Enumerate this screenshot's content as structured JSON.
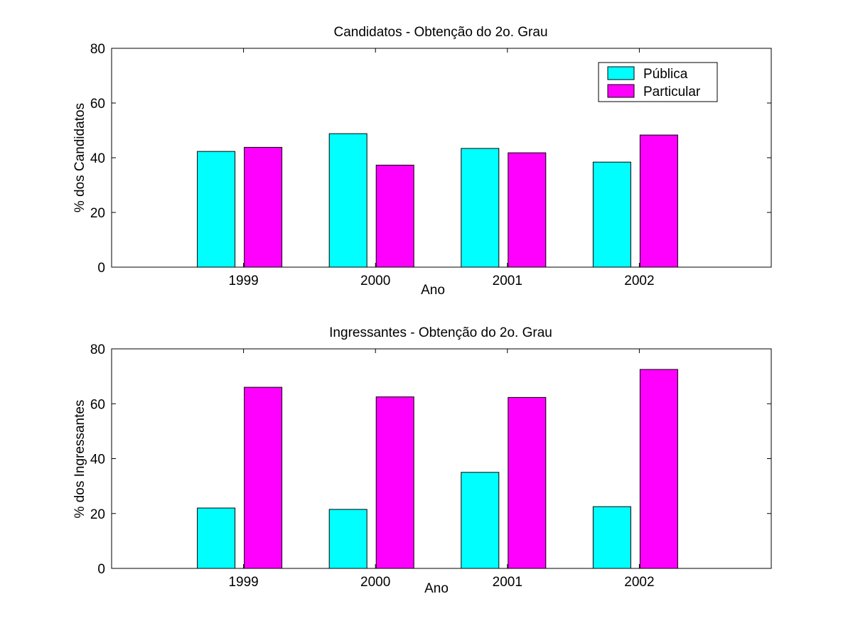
{
  "colors": {
    "publica": "#00ffff",
    "particular": "#ff00ff",
    "frame": "#000000",
    "background": "#ffffff"
  },
  "chart_data": [
    {
      "type": "bar",
      "title": "Candidatos - Obtenção do 2o. Grau",
      "xlabel": "Ano",
      "ylabel": "% dos Candidatos",
      "categories": [
        "1999",
        "2000",
        "2001",
        "2002"
      ],
      "ylim": [
        0,
        80
      ],
      "yticks": [
        0,
        20,
        40,
        60,
        80
      ],
      "grid": false,
      "legend_position": "top-right",
      "series": [
        {
          "name": "Pública",
          "values": [
            42.3,
            48.8,
            43.4,
            38.4
          ]
        },
        {
          "name": "Particular",
          "values": [
            43.8,
            37.3,
            41.8,
            48.3
          ]
        }
      ]
    },
    {
      "type": "bar",
      "title": "Ingressantes - Obtenção do 2o. Grau",
      "xlabel": "Ano",
      "ylabel": "% dos Ingressantes",
      "categories": [
        "1999",
        "2000",
        "2001",
        "2002"
      ],
      "ylim": [
        0,
        80
      ],
      "yticks": [
        0,
        20,
        40,
        60,
        80
      ],
      "grid": false,
      "series": [
        {
          "name": "Pública",
          "values": [
            22.0,
            21.5,
            35.0,
            22.5
          ]
        },
        {
          "name": "Particular",
          "values": [
            66.0,
            62.5,
            62.3,
            72.5
          ]
        }
      ]
    }
  ]
}
